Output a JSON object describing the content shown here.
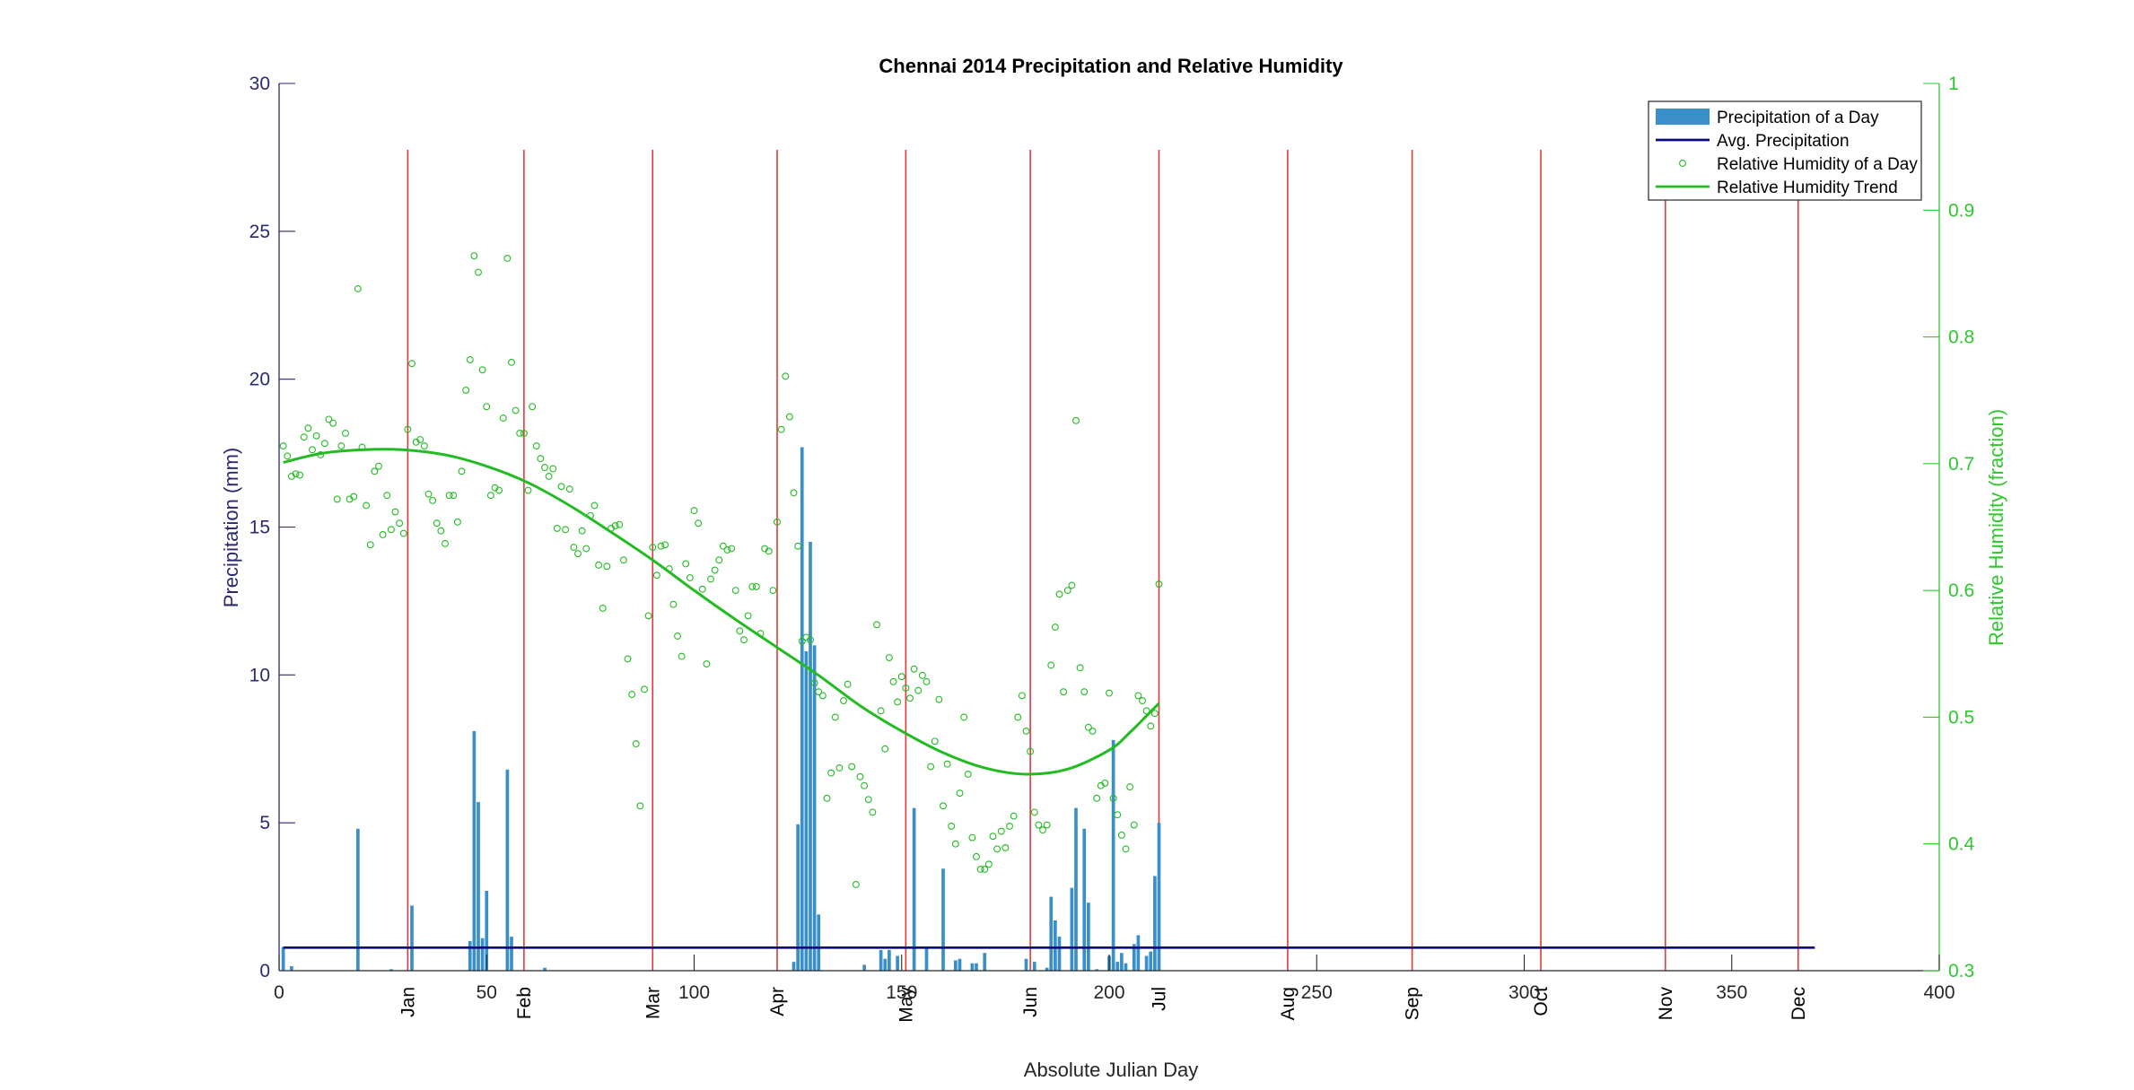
{
  "chart_data": {
    "type": "bar",
    "title": "Chennai 2014 Precipitation and Relative Humidity",
    "xlabel": "Absolute Julian Day",
    "ylabel_left": "Precipitation (mm)",
    "ylabel_right": "Relative Humidity (fraction)",
    "xlim": [
      0,
      400
    ],
    "ylim_left": [
      0,
      30
    ],
    "ylim_right": [
      0.3,
      1
    ],
    "xticks": [
      0,
      50,
      100,
      150,
      200,
      250,
      300,
      350,
      400
    ],
    "yticks_left": [
      0,
      5,
      10,
      15,
      20,
      25,
      30
    ],
    "yticks_right": [
      0.3,
      0.4,
      0.5,
      0.6,
      0.7,
      0.8,
      0.9,
      1
    ],
    "month_lines": [
      {
        "label": "Jan",
        "x": 31
      },
      {
        "label": "Feb",
        "x": 59
      },
      {
        "label": "Mar",
        "x": 90
      },
      {
        "label": "Apr",
        "x": 120
      },
      {
        "label": "May",
        "x": 151
      },
      {
        "label": "Jun",
        "x": 181
      },
      {
        "label": "Jul",
        "x": 212
      },
      {
        "label": "Aug",
        "x": 243
      },
      {
        "label": "Sep",
        "x": 273
      },
      {
        "label": "Oct",
        "x": 304
      },
      {
        "label": "Nov",
        "x": 334
      },
      {
        "label": "Dec",
        "x": 366
      }
    ],
    "legend_position": "top-right",
    "grid": false,
    "colors": {
      "bars": "#3a8fc8",
      "avg_line": "#0a0a7a",
      "humidity": "#22bb22",
      "month_lines": "#e23a3a",
      "axis_left": "#2a2a6e",
      "axis_right": "#2ec82e"
    },
    "series": [
      {
        "name": "Precipitation of a Day",
        "type": "bar",
        "axis": "left",
        "points": [
          [
            1,
            0.8
          ],
          [
            3,
            0.15
          ],
          [
            19,
            4.8
          ],
          [
            27,
            0.05
          ],
          [
            32,
            2.2
          ],
          [
            46,
            1.0
          ],
          [
            47,
            8.1
          ],
          [
            48,
            5.7
          ],
          [
            49,
            1.1
          ],
          [
            50,
            2.7
          ],
          [
            55,
            6.8
          ],
          [
            56,
            1.15
          ],
          [
            64,
            0.1
          ],
          [
            124,
            0.3
          ],
          [
            125,
            4.95
          ],
          [
            126,
            17.7
          ],
          [
            127,
            10.8
          ],
          [
            128,
            14.5
          ],
          [
            129,
            11.0
          ],
          [
            130,
            1.9
          ],
          [
            141,
            0.2
          ],
          [
            145,
            0.7
          ],
          [
            146,
            0.4
          ],
          [
            147,
            0.7
          ],
          [
            149,
            0.5
          ],
          [
            153,
            5.5
          ],
          [
            156,
            0.8
          ],
          [
            160,
            3.45
          ],
          [
            163,
            0.35
          ],
          [
            164,
            0.4
          ],
          [
            167,
            0.25
          ],
          [
            168,
            0.25
          ],
          [
            170,
            0.6
          ],
          [
            180,
            0.4
          ],
          [
            182,
            0.3
          ],
          [
            185,
            0.1
          ],
          [
            186,
            2.5
          ],
          [
            187,
            1.7
          ],
          [
            188,
            1.15
          ],
          [
            191,
            2.8
          ],
          [
            192,
            5.5
          ],
          [
            194,
            4.8
          ],
          [
            195,
            2.3
          ],
          [
            197,
            0.05
          ],
          [
            200,
            0.5
          ],
          [
            201,
            7.8
          ],
          [
            202,
            0.3
          ],
          [
            203,
            0.6
          ],
          [
            204,
            0.25
          ],
          [
            206,
            0.9
          ],
          [
            207,
            1.2
          ],
          [
            209,
            0.5
          ],
          [
            210,
            0.65
          ],
          [
            211,
            3.2
          ],
          [
            212,
            5.0
          ]
        ]
      },
      {
        "name": "Avg. Precipitation",
        "type": "line",
        "axis": "left",
        "x": [
          1,
          370
        ],
        "y": [
          0.78,
          0.78
        ]
      },
      {
        "name": "Relative Humidity of a Day",
        "type": "scatter",
        "axis": "right",
        "points": [
          [
            1,
            0.714
          ],
          [
            2,
            0.706
          ],
          [
            3,
            0.69
          ],
          [
            4,
            0.692
          ],
          [
            5,
            0.691
          ],
          [
            6,
            0.721
          ],
          [
            7,
            0.728
          ],
          [
            8,
            0.711
          ],
          [
            9,
            0.722
          ],
          [
            10,
            0.707
          ],
          [
            11,
            0.716
          ],
          [
            12,
            0.735
          ],
          [
            13,
            0.732
          ],
          [
            14,
            0.672
          ],
          [
            15,
            0.714
          ],
          [
            16,
            0.724
          ],
          [
            17,
            0.672
          ],
          [
            18,
            0.674
          ],
          [
            19,
            0.838
          ],
          [
            20,
            0.713
          ],
          [
            21,
            0.667
          ],
          [
            22,
            0.636
          ],
          [
            23,
            0.694
          ],
          [
            24,
            0.698
          ],
          [
            25,
            0.644
          ],
          [
            26,
            0.675
          ],
          [
            27,
            0.648
          ],
          [
            28,
            0.662
          ],
          [
            29,
            0.653
          ],
          [
            30,
            0.645
          ],
          [
            31,
            0.727
          ],
          [
            32,
            0.779
          ],
          [
            33,
            0.717
          ],
          [
            34,
            0.719
          ],
          [
            35,
            0.714
          ],
          [
            36,
            0.676
          ],
          [
            37,
            0.671
          ],
          [
            38,
            0.653
          ],
          [
            39,
            0.647
          ],
          [
            40,
            0.637
          ],
          [
            41,
            0.675
          ],
          [
            42,
            0.675
          ],
          [
            43,
            0.654
          ],
          [
            44,
            0.694
          ],
          [
            45,
            0.758
          ],
          [
            46,
            0.782
          ],
          [
            47,
            0.864
          ],
          [
            48,
            0.851
          ],
          [
            49,
            0.774
          ],
          [
            50,
            0.745
          ],
          [
            51,
            0.675
          ],
          [
            52,
            0.681
          ],
          [
            53,
            0.679
          ],
          [
            54,
            0.736
          ],
          [
            55,
            0.862
          ],
          [
            56,
            0.78
          ],
          [
            57,
            0.742
          ],
          [
            58,
            0.724
          ],
          [
            59,
            0.724
          ],
          [
            60,
            0.679
          ],
          [
            61,
            0.745
          ],
          [
            62,
            0.714
          ],
          [
            63,
            0.704
          ],
          [
            64,
            0.697
          ],
          [
            65,
            0.69
          ],
          [
            66,
            0.696
          ],
          [
            67,
            0.649
          ],
          [
            68,
            0.682
          ],
          [
            69,
            0.648
          ],
          [
            70,
            0.68
          ],
          [
            71,
            0.634
          ],
          [
            72,
            0.629
          ],
          [
            73,
            0.647
          ],
          [
            74,
            0.633
          ],
          [
            75,
            0.659
          ],
          [
            76,
            0.667
          ],
          [
            77,
            0.62
          ],
          [
            78,
            0.586
          ],
          [
            79,
            0.619
          ],
          [
            80,
            0.649
          ],
          [
            81,
            0.651
          ],
          [
            82,
            0.652
          ],
          [
            83,
            0.624
          ],
          [
            84,
            0.546
          ],
          [
            85,
            0.518
          ],
          [
            86,
            0.479
          ],
          [
            87,
            0.43
          ],
          [
            88,
            0.522
          ],
          [
            89,
            0.58
          ],
          [
            90,
            0.634
          ],
          [
            91,
            0.612
          ],
          [
            92,
            0.635
          ],
          [
            93,
            0.636
          ],
          [
            94,
            0.617
          ],
          [
            95,
            0.589
          ],
          [
            96,
            0.564
          ],
          [
            97,
            0.548
          ],
          [
            98,
            0.621
          ],
          [
            99,
            0.61
          ],
          [
            100,
            0.663
          ],
          [
            101,
            0.653
          ],
          [
            102,
            0.601
          ],
          [
            103,
            0.542
          ],
          [
            104,
            0.609
          ],
          [
            105,
            0.616
          ],
          [
            106,
            0.624
          ],
          [
            107,
            0.635
          ],
          [
            108,
            0.632
          ],
          [
            109,
            0.633
          ],
          [
            110,
            0.6
          ],
          [
            111,
            0.568
          ],
          [
            112,
            0.561
          ],
          [
            113,
            0.58
          ],
          [
            114,
            0.603
          ],
          [
            115,
            0.603
          ],
          [
            116,
            0.566
          ],
          [
            117,
            0.633
          ],
          [
            118,
            0.631
          ],
          [
            119,
            0.6
          ],
          [
            120,
            0.654
          ],
          [
            121,
            0.727
          ],
          [
            122,
            0.769
          ],
          [
            123,
            0.737
          ],
          [
            124,
            0.677
          ],
          [
            125,
            0.635
          ],
          [
            126,
            0.56
          ],
          [
            127,
            0.563
          ],
          [
            128,
            0.561
          ],
          [
            129,
            0.527
          ],
          [
            130,
            0.52
          ],
          [
            131,
            0.517
          ],
          [
            132,
            0.436
          ],
          [
            133,
            0.456
          ],
          [
            134,
            0.5
          ],
          [
            135,
            0.46
          ],
          [
            136,
            0.513
          ],
          [
            137,
            0.526
          ],
          [
            138,
            0.461
          ],
          [
            139,
            0.368
          ],
          [
            140,
            0.453
          ],
          [
            141,
            0.446
          ],
          [
            142,
            0.435
          ],
          [
            143,
            0.425
          ],
          [
            144,
            0.573
          ],
          [
            145,
            0.505
          ],
          [
            146,
            0.475
          ],
          [
            147,
            0.547
          ],
          [
            148,
            0.528
          ],
          [
            149,
            0.512
          ],
          [
            150,
            0.532
          ],
          [
            151,
            0.523
          ],
          [
            152,
            0.515
          ],
          [
            153,
            0.538
          ],
          [
            154,
            0.521
          ],
          [
            155,
            0.533
          ],
          [
            156,
            0.528
          ],
          [
            157,
            0.461
          ],
          [
            158,
            0.481
          ],
          [
            159,
            0.514
          ],
          [
            160,
            0.43
          ],
          [
            161,
            0.463
          ],
          [
            162,
            0.414
          ],
          [
            163,
            0.4
          ],
          [
            164,
            0.44
          ],
          [
            165,
            0.5
          ],
          [
            166,
            0.455
          ],
          [
            167,
            0.405
          ],
          [
            168,
            0.39
          ],
          [
            169,
            0.38
          ],
          [
            170,
            0.38
          ],
          [
            171,
            0.384
          ],
          [
            172,
            0.406
          ],
          [
            173,
            0.396
          ],
          [
            174,
            0.41
          ],
          [
            175,
            0.397
          ],
          [
            176,
            0.414
          ],
          [
            177,
            0.422
          ],
          [
            178,
            0.5
          ],
          [
            179,
            0.517
          ],
          [
            180,
            0.489
          ],
          [
            181,
            0.473
          ],
          [
            182,
            0.425
          ],
          [
            183,
            0.415
          ],
          [
            184,
            0.411
          ],
          [
            185,
            0.415
          ],
          [
            186,
            0.541
          ],
          [
            187,
            0.571
          ],
          [
            188,
            0.597
          ],
          [
            189,
            0.52
          ],
          [
            190,
            0.6
          ],
          [
            191,
            0.604
          ],
          [
            192,
            0.734
          ],
          [
            193,
            0.539
          ],
          [
            194,
            0.52
          ],
          [
            195,
            0.492
          ],
          [
            196,
            0.489
          ],
          [
            197,
            0.436
          ],
          [
            198,
            0.446
          ],
          [
            199,
            0.448
          ],
          [
            200,
            0.519
          ],
          [
            201,
            0.436
          ],
          [
            202,
            0.423
          ],
          [
            203,
            0.407
          ],
          [
            204,
            0.396
          ],
          [
            205,
            0.445
          ],
          [
            206,
            0.415
          ],
          [
            207,
            0.517
          ],
          [
            208,
            0.513
          ],
          [
            209,
            0.505
          ],
          [
            210,
            0.493
          ],
          [
            211,
            0.503
          ],
          [
            212,
            0.605
          ]
        ]
      },
      {
        "name": "Relative Humidity Trend",
        "type": "line",
        "axis": "right",
        "x": [
          1,
          10,
          20,
          30,
          40,
          50,
          60,
          70,
          80,
          90,
          100,
          110,
          120,
          130,
          140,
          150,
          160,
          170,
          180,
          190,
          200,
          205,
          212
        ],
        "y": [
          0.701,
          0.708,
          0.711,
          0.711,
          0.707,
          0.698,
          0.685,
          0.667,
          0.646,
          0.624,
          0.6,
          0.577,
          0.555,
          0.533,
          0.509,
          0.489,
          0.472,
          0.46,
          0.455,
          0.459,
          0.474,
          0.488,
          0.511
        ]
      }
    ]
  }
}
